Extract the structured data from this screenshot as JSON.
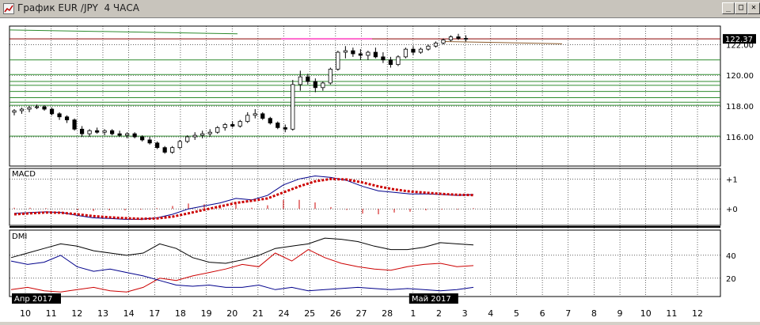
{
  "window": {
    "title": "График EUR /JPY  4 ЧАСА",
    "buttons": {
      "minimize": "_",
      "maximize": "□",
      "close": "✕"
    },
    "icons": [
      "chart-app-icon",
      "minimize-icon",
      "maximize-icon",
      "close-icon"
    ]
  },
  "chart_data": [
    {
      "type": "candlestick",
      "panel": "price",
      "symbol": "EUR/JPY",
      "timeframe": "4 ЧАСА",
      "y_ticks": [
        "122.00",
        "120.00",
        "118.00",
        "116.00"
      ],
      "y_tick_values": [
        122,
        120,
        118,
        116
      ],
      "last_price_label": "122.37",
      "last_price": 122.37,
      "ylim": [
        114.1,
        123.2
      ],
      "x_categories": [
        "10",
        "11",
        "12",
        "13",
        "14",
        "17",
        "18",
        "19",
        "20",
        "21",
        "24",
        "25",
        "26",
        "27",
        "28",
        "1",
        "2",
        "3",
        "4",
        "5",
        "6",
        "7",
        "8",
        "9",
        "10",
        "11",
        "12"
      ],
      "month_labels": [
        {
          "text": "Апр 2017",
          "at_day": "10"
        },
        {
          "text": "Май 2017",
          "at_day": "1"
        }
      ],
      "horizontal_levels": [
        121.0,
        120.05,
        119.6,
        119.35,
        118.95,
        118.55,
        118.25,
        118.05,
        116.05
      ],
      "ohlc": [
        [
          117.6,
          117.8,
          117.4,
          117.7
        ],
        [
          117.7,
          117.9,
          117.5,
          117.8
        ],
        [
          117.8,
          118.0,
          117.6,
          117.9
        ],
        [
          117.9,
          118.1,
          117.8,
          117.95
        ],
        [
          117.95,
          118.05,
          117.7,
          117.8
        ],
        [
          117.8,
          117.9,
          117.4,
          117.5
        ],
        [
          117.5,
          117.6,
          117.1,
          117.3
        ],
        [
          117.3,
          117.4,
          116.9,
          117.1
        ],
        [
          117.1,
          117.2,
          116.4,
          116.5
        ],
        [
          116.5,
          116.7,
          116.0,
          116.2
        ],
        [
          116.2,
          116.5,
          116.0,
          116.4
        ],
        [
          116.4,
          116.6,
          116.2,
          116.3
        ],
        [
          116.3,
          116.5,
          116.1,
          116.4
        ],
        [
          116.4,
          116.5,
          116.1,
          116.2
        ],
        [
          116.2,
          116.4,
          116.0,
          116.1
        ],
        [
          116.1,
          116.3,
          115.9,
          116.2
        ],
        [
          116.2,
          116.3,
          115.9,
          116.0
        ],
        [
          116.0,
          116.1,
          115.7,
          115.8
        ],
        [
          115.8,
          116.0,
          115.5,
          115.6
        ],
        [
          115.6,
          115.7,
          115.2,
          115.3
        ],
        [
          115.3,
          115.4,
          114.9,
          115.0
        ],
        [
          115.0,
          115.4,
          114.9,
          115.3
        ],
        [
          115.3,
          115.8,
          115.2,
          115.7
        ],
        [
          115.7,
          116.1,
          115.6,
          116.0
        ],
        [
          116.0,
          116.3,
          115.8,
          116.1
        ],
        [
          116.1,
          116.4,
          115.9,
          116.2
        ],
        [
          116.2,
          116.5,
          116.0,
          116.3
        ],
        [
          116.3,
          116.7,
          116.2,
          116.6
        ],
        [
          116.6,
          116.9,
          116.4,
          116.8
        ],
        [
          116.8,
          117.0,
          116.6,
          116.7
        ],
        [
          116.7,
          117.1,
          116.6,
          117.0
        ],
        [
          117.0,
          117.6,
          116.9,
          117.4
        ],
        [
          117.4,
          117.8,
          117.2,
          117.5
        ],
        [
          117.5,
          117.6,
          117.1,
          117.2
        ],
        [
          117.2,
          117.3,
          116.8,
          116.9
        ],
        [
          116.9,
          117.0,
          116.5,
          116.6
        ],
        [
          116.6,
          116.8,
          116.3,
          116.5
        ],
        [
          116.5,
          119.7,
          116.4,
          119.4
        ],
        [
          119.4,
          120.3,
          119.0,
          119.9
        ],
        [
          119.9,
          120.1,
          119.4,
          119.6
        ],
        [
          119.6,
          119.8,
          118.9,
          119.2
        ],
        [
          119.2,
          119.6,
          119.0,
          119.5
        ],
        [
          119.5,
          120.5,
          119.4,
          120.4
        ],
        [
          120.4,
          121.6,
          120.3,
          121.5
        ],
        [
          121.5,
          121.9,
          121.1,
          121.6
        ],
        [
          121.6,
          121.8,
          121.2,
          121.4
        ],
        [
          121.4,
          121.7,
          121.0,
          121.3
        ],
        [
          121.3,
          121.6,
          121.0,
          121.5
        ],
        [
          121.5,
          121.8,
          121.1,
          121.2
        ],
        [
          121.2,
          121.5,
          120.8,
          121.0
        ],
        [
          121.0,
          121.2,
          120.5,
          120.7
        ],
        [
          120.7,
          121.3,
          120.6,
          121.2
        ],
        [
          121.2,
          121.8,
          121.1,
          121.7
        ],
        [
          121.7,
          121.9,
          121.3,
          121.5
        ],
        [
          121.5,
          121.8,
          121.4,
          121.7
        ],
        [
          121.7,
          122.0,
          121.6,
          121.9
        ],
        [
          121.9,
          122.2,
          121.8,
          122.1
        ],
        [
          122.1,
          122.4,
          122.0,
          122.3
        ],
        [
          122.3,
          122.6,
          122.2,
          122.5
        ],
        [
          122.5,
          122.7,
          122.3,
          122.4
        ],
        [
          122.4,
          122.6,
          122.2,
          122.37
        ]
      ]
    },
    {
      "type": "line",
      "panel": "macd",
      "name": "MACD",
      "y_ticks": [
        "+1",
        "+0"
      ],
      "y_tick_values": [
        1,
        0
      ],
      "ylim": [
        -0.55,
        1.35
      ],
      "series": [
        {
          "role": "macd",
          "color": "#00008b",
          "values": [
            -0.15,
            -0.12,
            -0.1,
            -0.12,
            -0.22,
            -0.3,
            -0.32,
            -0.35,
            -0.35,
            -0.3,
            -0.18,
            0.0,
            0.1,
            0.2,
            0.35,
            0.3,
            0.45,
            0.8,
            1.0,
            1.1,
            1.05,
            0.95,
            0.75,
            0.6,
            0.55,
            0.5,
            0.5,
            0.48,
            0.45,
            0.48
          ]
        },
        {
          "role": "signal",
          "color": "#cc0000",
          "values": [
            -0.18,
            -0.15,
            -0.12,
            -0.13,
            -0.18,
            -0.24,
            -0.28,
            -0.31,
            -0.33,
            -0.32,
            -0.26,
            -0.15,
            -0.03,
            0.08,
            0.2,
            0.27,
            0.35,
            0.55,
            0.75,
            0.92,
            1.0,
            0.98,
            0.88,
            0.75,
            0.65,
            0.58,
            0.54,
            0.5,
            0.47,
            0.46
          ]
        }
      ]
    },
    {
      "type": "line",
      "panel": "dmi",
      "name": "DMI",
      "y_ticks": [
        "40",
        "20"
      ],
      "y_tick_values": [
        40,
        20
      ],
      "ylim": [
        4,
        62
      ],
      "series": [
        {
          "role": "adx",
          "color": "#000000",
          "values": [
            38,
            42,
            46,
            50,
            48,
            44,
            42,
            40,
            42,
            50,
            46,
            38,
            34,
            33,
            36,
            40,
            46,
            48,
            50,
            55,
            54,
            52,
            48,
            45,
            45,
            47,
            51,
            50,
            49
          ]
        },
        {
          "role": "plus_di",
          "color": "#cc0000",
          "values": [
            10,
            12,
            9,
            8,
            10,
            12,
            9,
            8,
            12,
            20,
            18,
            22,
            25,
            28,
            32,
            30,
            42,
            35,
            45,
            38,
            33,
            30,
            28,
            27,
            30,
            32,
            33,
            30,
            31
          ]
        },
        {
          "role": "minus_di",
          "color": "#00008b",
          "values": [
            35,
            32,
            34,
            40,
            30,
            26,
            28,
            25,
            22,
            18,
            14,
            13,
            14,
            12,
            12,
            14,
            10,
            12,
            9,
            10,
            11,
            12,
            11,
            10,
            11,
            10,
            9,
            10,
            12
          ]
        }
      ]
    }
  ]
}
